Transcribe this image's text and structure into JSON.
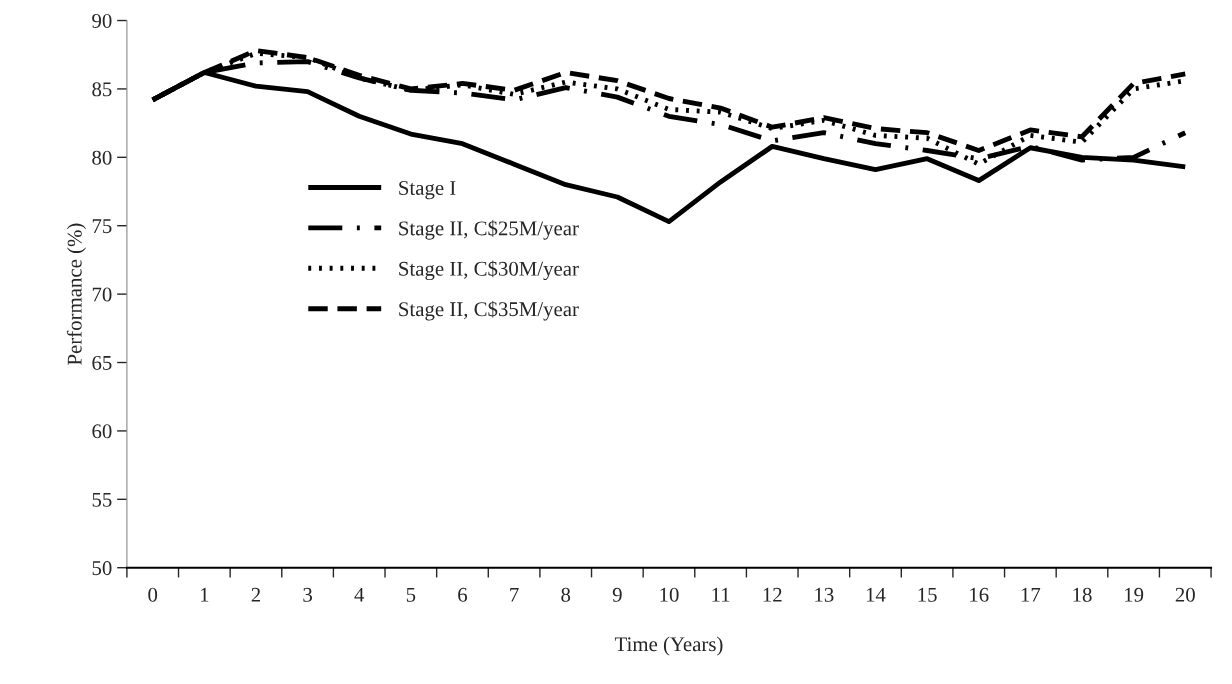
{
  "chart_data": {
    "type": "line",
    "xlabel": "Time (Years)",
    "ylabel": "Performance (%)",
    "categories": [
      "0",
      "1",
      "2",
      "3",
      "4",
      "5",
      "6",
      "7",
      "8",
      "9",
      "10",
      "11",
      "12",
      "13",
      "14",
      "15",
      "16",
      "17",
      "18",
      "19",
      "20"
    ],
    "ylim": [
      50,
      90
    ],
    "yticks": [
      50,
      55,
      60,
      65,
      70,
      75,
      80,
      85,
      90
    ],
    "grid": false,
    "legend": "left",
    "marker": "none",
    "series": [
      {
        "name": "Stage I",
        "color": "#000000",
        "line_style": "solid",
        "values": [
          84.2,
          86.2,
          85.2,
          84.8,
          83.0,
          81.7,
          81.0,
          79.5,
          78.0,
          77.1,
          75.3,
          78.2,
          80.8,
          79.9,
          79.1,
          79.9,
          78.3,
          80.7,
          80.0,
          79.8,
          79.3
        ]
      },
      {
        "name": "Stage II, C$25M/year",
        "color": "#000000",
        "line_style": "dashdot",
        "values": [
          84.2,
          86.2,
          86.9,
          87.0,
          85.8,
          84.9,
          84.7,
          84.2,
          85.1,
          84.4,
          83.0,
          82.4,
          81.2,
          81.8,
          81.0,
          80.5,
          79.9,
          80.8,
          79.8,
          80.0,
          81.8
        ]
      },
      {
        "name": "Stage II, C$30M/year",
        "color": "#000000",
        "line_style": "dotted",
        "values": [
          84.2,
          86.2,
          87.6,
          87.3,
          85.8,
          84.9,
          85.3,
          84.6,
          85.5,
          85.0,
          83.5,
          83.3,
          82.1,
          82.7,
          81.6,
          81.4,
          79.5,
          81.6,
          81.1,
          85.0,
          85.6
        ]
      },
      {
        "name": "Stage II, C$35M/year",
        "color": "#000000",
        "line_style": "dashed",
        "values": [
          84.2,
          86.2,
          87.8,
          87.3,
          86.0,
          85.0,
          85.4,
          84.9,
          86.2,
          85.6,
          84.3,
          83.6,
          82.2,
          82.9,
          82.1,
          81.8,
          80.5,
          82.0,
          81.5,
          85.4,
          86.1
        ]
      }
    ]
  }
}
